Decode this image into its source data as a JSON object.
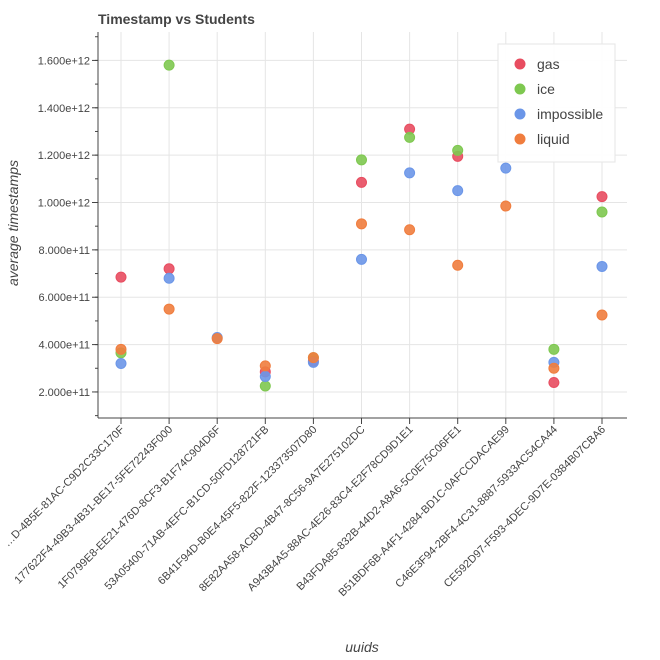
{
  "chart_data": {
    "type": "scatter",
    "title": "Timestamp vs Students",
    "xlabel": "uuids",
    "ylabel": "average timestamps",
    "ylim": [
      90000000000,
      1720000000000
    ],
    "yticks": [
      200000000000,
      400000000000,
      600000000000,
      800000000000,
      1000000000000,
      1200000000000,
      1400000000000,
      1600000000000
    ],
    "ytick_labels": [
      "2.000e+11",
      "4.000e+11",
      "6.000e+11",
      "8.000e+11",
      "1.000e+12",
      "1.200e+12",
      "1.400e+12",
      "1.600e+12"
    ],
    "grid": true,
    "legend_position": "top-right",
    "categories": [
      "…D-4B5E-81AC-C9D2C33C170F",
      "177622F4-49B3-4B31-BE17-5FE72243F000",
      "1F0799E8-EE21-476D-8CF3-B1F74C904D6F",
      "53A05400-71AB-4EFC-B1CD-50FD128721FB",
      "6B41F94D-B0E4-45F5-822F-123373507D80",
      "8E82AA58-ACBD-4B47-8C56-9A7E275102DC",
      "A943B4A5-88AC-4E26-83C4-E2F78CD9D1E1",
      "B43FDA85-832B-44D2-A8A6-5C0E75C06FE1",
      "B51BDF6B-A4F1-4284-BD1C-0AFCCDACAE99",
      "C46E3F94-2BF4-4C31-8887-5933AC54CA44",
      "CE592D97-F593-4DEC-9D7E-0384B07CBA6"
    ],
    "series": [
      {
        "name": "gas",
        "color": "#e84d60",
        "values": [
          685000000000,
          720000000000,
          null,
          285000000000,
          330000000000,
          1085000000000,
          1310000000000,
          1195000000000,
          null,
          240000000000,
          1025000000000
        ]
      },
      {
        "name": "ice",
        "color": "#7ec850",
        "values": [
          365000000000,
          1580000000000,
          null,
          225000000000,
          345000000000,
          1180000000000,
          1275000000000,
          1220000000000,
          null,
          380000000000,
          960000000000
        ]
      },
      {
        "name": "impossible",
        "color": "#6b96e8",
        "values": [
          320000000000,
          680000000000,
          430000000000,
          265000000000,
          325000000000,
          760000000000,
          1125000000000,
          1050000000000,
          1145000000000,
          325000000000,
          730000000000
        ]
      },
      {
        "name": "liquid",
        "color": "#f07d3e",
        "values": [
          380000000000,
          550000000000,
          425000000000,
          310000000000,
          345000000000,
          910000000000,
          885000000000,
          735000000000,
          985000000000,
          300000000000,
          525000000000
        ]
      }
    ]
  }
}
